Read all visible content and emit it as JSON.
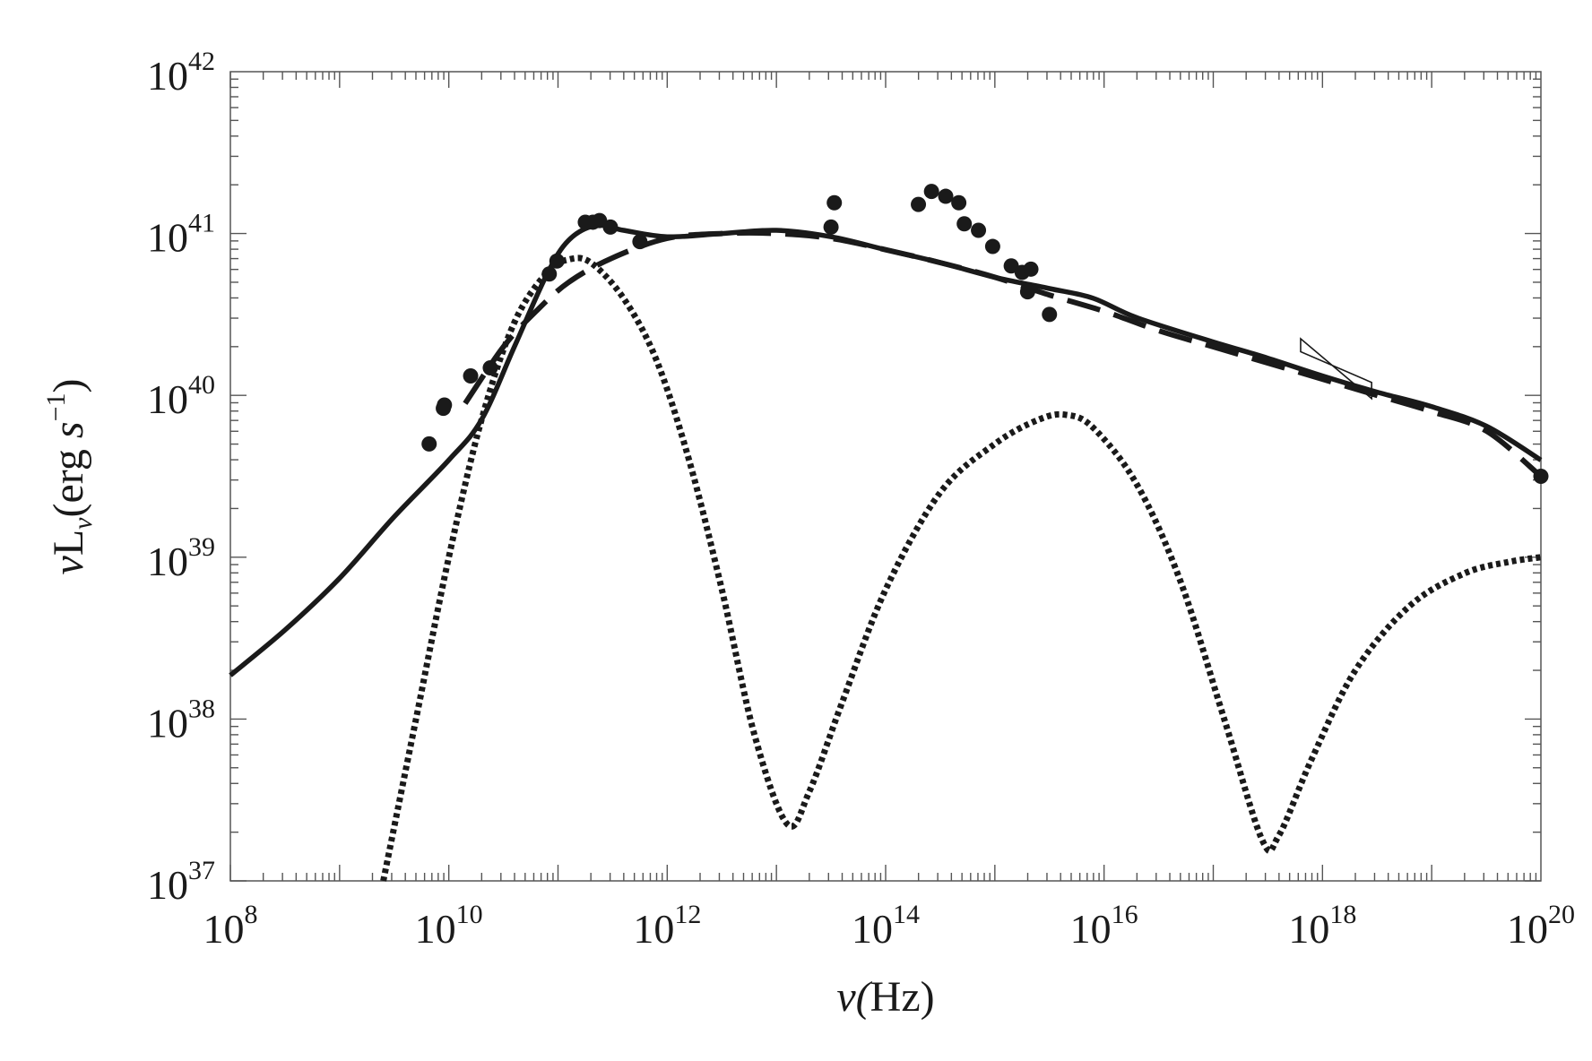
{
  "chart_data": {
    "type": "scatter",
    "title": "",
    "xlabel": {
      "pre": "ν(",
      "unit": "Hz",
      "post": ")"
    },
    "ylabel": {
      "v": "ν",
      "L": "L",
      "sub": "ν",
      "open": "(erg ",
      "s": "s",
      "exp": "−1",
      "close": ")"
    },
    "x_scale": "log",
    "y_scale": "log",
    "xlim": [
      100000000.0,
      1e+20
    ],
    "ylim": [
      1e+37,
      1e+42
    ],
    "x_ticks": [
      {
        "value": 100000000.0,
        "base": "10",
        "exp": "8"
      },
      {
        "value": 10000000000.0,
        "base": "10",
        "exp": "10"
      },
      {
        "value": 1000000000000.0,
        "base": "10",
        "exp": "12"
      },
      {
        "value": 100000000000000.0,
        "base": "10",
        "exp": "14"
      },
      {
        "value": 1e+16,
        "base": "10",
        "exp": "16"
      },
      {
        "value": 1e+18,
        "base": "10",
        "exp": "18"
      },
      {
        "value": 1e+20,
        "base": "10",
        "exp": "20"
      }
    ],
    "y_ticks": [
      {
        "value": 1e+37,
        "base": "10",
        "exp": "37"
      },
      {
        "value": 1e+38,
        "base": "10",
        "exp": "38"
      },
      {
        "value": 1e+39,
        "base": "10",
        "exp": "39"
      },
      {
        "value": 1e+40,
        "base": "10",
        "exp": "40"
      },
      {
        "value": 1e+41,
        "base": "10",
        "exp": "41"
      },
      {
        "value": 1e+42,
        "base": "10",
        "exp": "42"
      }
    ],
    "grid": false,
    "legend": "none",
    "series": [
      {
        "style": "solid",
        "color": "#1a1a1a",
        "log_points": [
          [
            8.0,
            38.27
          ],
          [
            8.5,
            38.55
          ],
          [
            9.0,
            38.87
          ],
          [
            9.5,
            39.25
          ],
          [
            10.0,
            39.6
          ],
          [
            10.3,
            39.85
          ],
          [
            10.6,
            40.3
          ],
          [
            10.9,
            40.75
          ],
          [
            11.1,
            40.96
          ],
          [
            11.35,
            41.05
          ],
          [
            11.6,
            41.02
          ],
          [
            12.0,
            40.98
          ],
          [
            12.5,
            41.0
          ],
          [
            13.0,
            41.02
          ],
          [
            13.5,
            40.98
          ],
          [
            14.0,
            40.9
          ],
          [
            14.5,
            40.82
          ],
          [
            15.0,
            40.73
          ],
          [
            15.5,
            40.66
          ],
          [
            15.9,
            40.6
          ],
          [
            16.3,
            40.48
          ],
          [
            17.0,
            40.33
          ],
          [
            17.5,
            40.23
          ],
          [
            18.0,
            40.12
          ],
          [
            18.5,
            40.02
          ],
          [
            19.0,
            39.93
          ],
          [
            19.5,
            39.81
          ],
          [
            20.0,
            39.6
          ]
        ]
      },
      {
        "style": "dashed",
        "color": "#1a1a1a",
        "log_points": [
          [
            10.15,
            39.95
          ],
          [
            10.5,
            40.3
          ],
          [
            10.8,
            40.52
          ],
          [
            11.1,
            40.7
          ],
          [
            11.5,
            40.85
          ],
          [
            12.0,
            40.97
          ],
          [
            12.5,
            41.0
          ],
          [
            13.0,
            41.0
          ],
          [
            13.5,
            40.97
          ],
          [
            14.0,
            40.9
          ],
          [
            14.5,
            40.82
          ],
          [
            15.0,
            40.73
          ],
          [
            15.5,
            40.62
          ],
          [
            16.0,
            40.52
          ],
          [
            16.5,
            40.4
          ],
          [
            17.0,
            40.3
          ],
          [
            17.5,
            40.2
          ],
          [
            18.0,
            40.1
          ],
          [
            18.5,
            40.0
          ],
          [
            19.0,
            39.9
          ],
          [
            19.5,
            39.78
          ],
          [
            20.0,
            39.5
          ]
        ]
      },
      {
        "style": "dotted",
        "color": "#1a1a1a",
        "log_points": [
          [
            9.4,
            37.0
          ],
          [
            9.7,
            38.0
          ],
          [
            10.0,
            39.0
          ],
          [
            10.3,
            39.85
          ],
          [
            10.6,
            40.45
          ],
          [
            10.9,
            40.76
          ],
          [
            11.1,
            40.84
          ],
          [
            11.3,
            40.82
          ],
          [
            11.6,
            40.6
          ],
          [
            11.9,
            40.22
          ],
          [
            12.2,
            39.6
          ],
          [
            12.5,
            38.8
          ],
          [
            12.8,
            37.9
          ],
          [
            13.1,
            37.35
          ],
          [
            13.3,
            37.55
          ],
          [
            13.6,
            38.1
          ],
          [
            14.0,
            38.8
          ],
          [
            14.5,
            39.4
          ],
          [
            15.0,
            39.7
          ],
          [
            15.4,
            39.85
          ],
          [
            15.65,
            39.88
          ],
          [
            15.9,
            39.8
          ],
          [
            16.3,
            39.45
          ],
          [
            16.7,
            38.85
          ],
          [
            17.1,
            38.0
          ],
          [
            17.45,
            37.25
          ],
          [
            17.6,
            37.28
          ],
          [
            17.9,
            37.75
          ],
          [
            18.3,
            38.3
          ],
          [
            18.8,
            38.7
          ],
          [
            19.3,
            38.9
          ],
          [
            19.7,
            38.97
          ],
          [
            20.0,
            39.0
          ]
        ]
      }
    ],
    "observations": {
      "marker": "filled-circle",
      "log_points": [
        [
          9.82,
          39.7
        ],
        [
          9.95,
          39.92
        ],
        [
          9.96,
          39.94
        ],
        [
          10.2,
          40.12
        ],
        [
          10.38,
          40.17
        ],
        [
          10.92,
          40.75
        ],
        [
          10.99,
          40.83
        ],
        [
          11.25,
          41.07
        ],
        [
          11.32,
          41.07
        ],
        [
          11.38,
          41.08
        ],
        [
          11.48,
          41.04
        ],
        [
          11.75,
          40.95
        ],
        [
          13.5,
          41.04
        ],
        [
          13.53,
          41.19
        ],
        [
          14.3,
          41.18
        ],
        [
          14.42,
          41.26
        ],
        [
          14.55,
          41.23
        ],
        [
          14.67,
          41.19
        ],
        [
          14.72,
          41.06
        ],
        [
          14.85,
          41.02
        ],
        [
          14.98,
          40.92
        ],
        [
          15.15,
          40.8
        ],
        [
          15.25,
          40.76
        ],
        [
          15.3,
          40.64
        ],
        [
          15.33,
          40.78
        ],
        [
          15.5,
          40.5
        ],
        [
          20.0,
          39.5
        ]
      ]
    },
    "annotations": [
      {
        "type": "bow-tie",
        "x_range_log": [
          17.8,
          18.45
        ],
        "y_log_left": [
          40.35,
          40.27
        ],
        "y_log_right": [
          39.98,
          40.08
        ]
      }
    ]
  }
}
